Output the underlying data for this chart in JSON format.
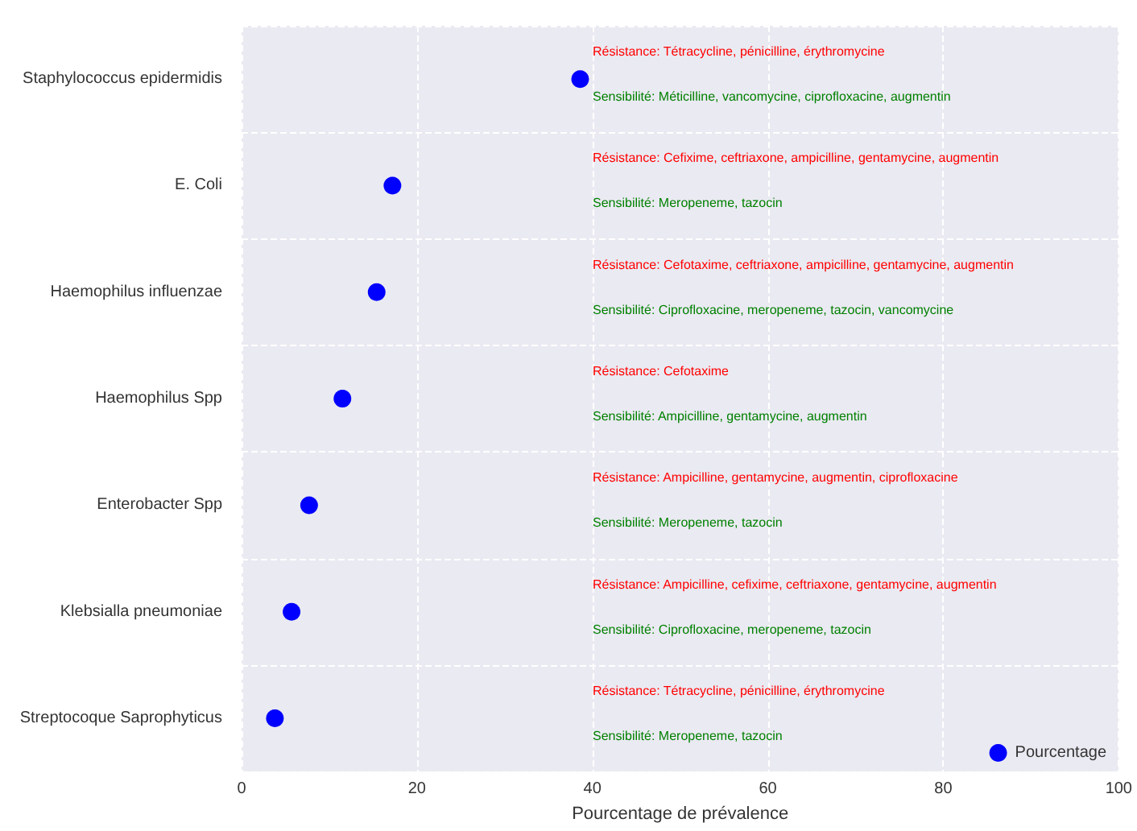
{
  "chart_data": {
    "type": "scatter",
    "orientation": "horizontal",
    "xlabel": "Pourcentage de prévalence",
    "categories": [
      "Staphylococcus epidermidis",
      "E. Coli",
      "Haemophilus influenzae",
      "Haemophilus Spp",
      "Enterobacter Spp",
      "Klebsialla pneumoniae",
      "Streptocoque Saprophyticus"
    ],
    "series": [
      {
        "name": "Pourcentage",
        "color": "#0000ff",
        "values": [
          38.6,
          17.2,
          15.4,
          11.5,
          7.7,
          5.7,
          3.8
        ]
      }
    ],
    "xlim": [
      0,
      100
    ],
    "xticks": [
      0,
      20,
      40,
      60,
      80,
      100
    ],
    "grid": true,
    "legend": "bottom right",
    "marker": "circle",
    "annotations": [
      "Résistance: Tétracycline, pénicilline, érythromycine",
      "Sensibilité: Méticilline, vancomycine, ciprofloxacine, augmentin",
      "Résistance: Cefixime, ceftriaxone, ampicilline, gentamycine, augmentin",
      "Sensibilité: Meropeneme, tazocin",
      "Résistance: Cefotaxime, ceftriaxone, ampicilline, gentamycine, augmentin",
      "Sensibilité: Ciprofloxacine, meropeneme, tazocin, vancomycine",
      "Résistance: Cefotaxime",
      "Sensibilité: Ampicilline, gentamycine, augmentin",
      "Résistance: Ampicilline, gentamycine, augmentin, ciprofloxacine",
      "Sensibilité: Meropeneme, tazocin",
      "Résistance: Ampicilline, cefixime, ceftriaxone, gentamycine, augmentin",
      "Sensibilité: Ciprofloxacine, meropeneme, tazocin",
      "Résistance: Tétracycline, pénicilline, érythromycine",
      "Sensibilité: Meropeneme, tazocin"
    ]
  }
}
